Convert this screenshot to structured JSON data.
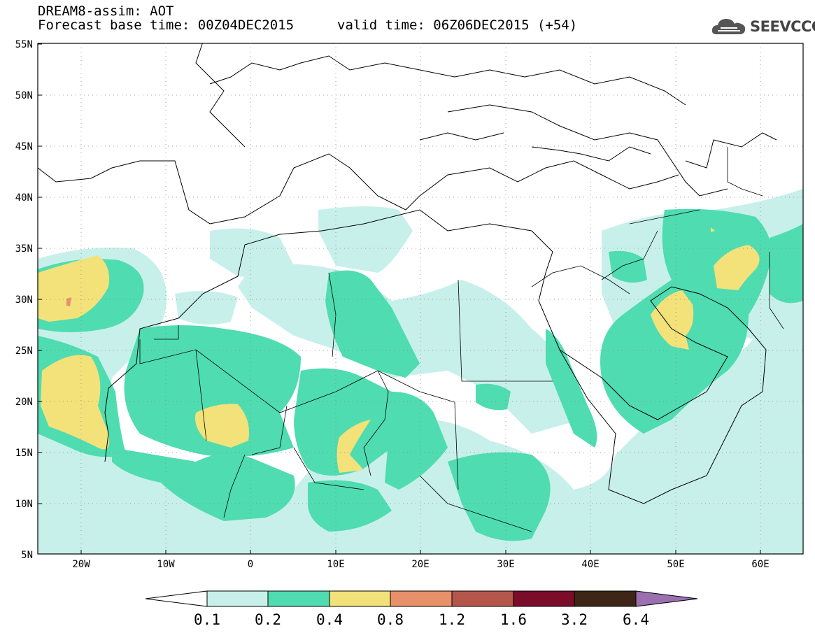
{
  "title": {
    "line1": "DREAM8-assim: AOT",
    "base_time": "Forecast base time: 00Z04DEC2015",
    "valid_time": "valid time: 06Z06DEC2015 (+54)"
  },
  "logo": {
    "text": "SEEVCCC",
    "icon": "cloud-icon"
  },
  "axes": {
    "lat_labels": [
      "55N",
      "50N",
      "45N",
      "40N",
      "35N",
      "30N",
      "25N",
      "20N",
      "15N",
      "10N",
      "5N"
    ],
    "lon_labels": [
      "20W",
      "10W",
      "0",
      "10E",
      "20E",
      "30E",
      "40E",
      "50E",
      "60E"
    ]
  },
  "colorbar": {
    "labels": [
      "0.1",
      "0.2",
      "0.4",
      "0.8",
      "1.2",
      "1.6",
      "3.2",
      "6.4"
    ],
    "colors": [
      "#c8f0ea",
      "#4fdcb0",
      "#f3e27a",
      "#e8906a",
      "#b5564a",
      "#7a0d2a",
      "#3d2616",
      "#9b6fb0"
    ]
  },
  "colors": {
    "level_0_1": "#c8f0ea",
    "level_0_2": "#4fdcb0",
    "level_0_4": "#f3e27a",
    "level_0_8": "#e8906a"
  }
}
